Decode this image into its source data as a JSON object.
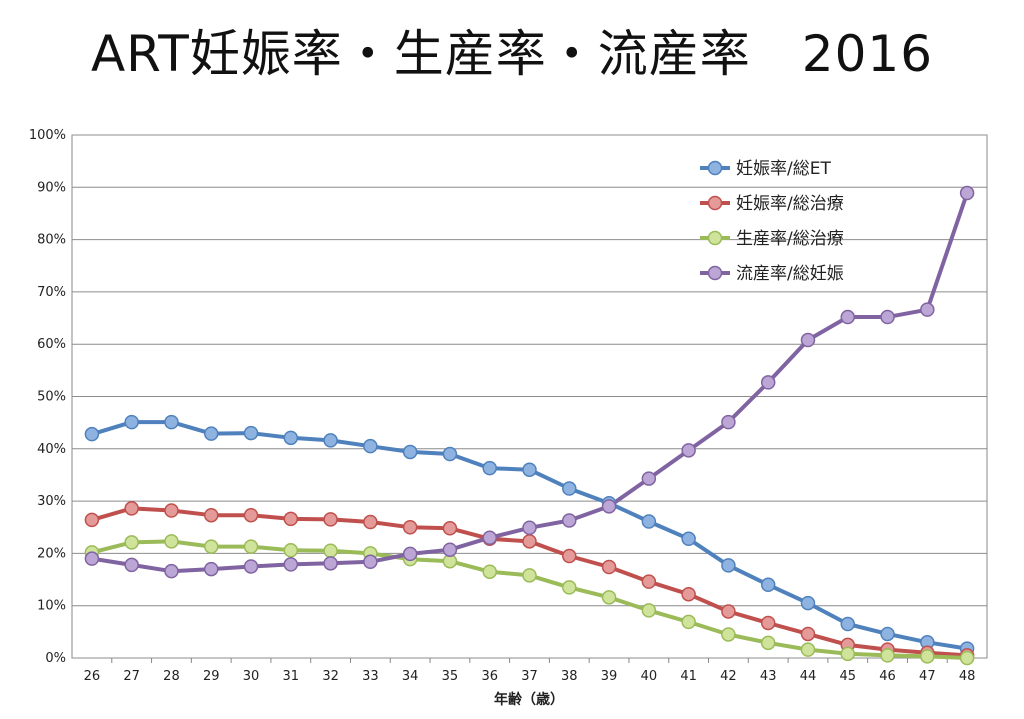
{
  "title": "ART妊娠率・生産率・流産率　2016",
  "chart_data": {
    "type": "line",
    "title": "ART妊娠率・生産率・流産率　2016",
    "xlabel": "年齢（歳）",
    "ylabel": "",
    "ylim": [
      0,
      100
    ],
    "y_ticks": [
      "0%",
      "10%",
      "20%",
      "30%",
      "40%",
      "50%",
      "60%",
      "70%",
      "80%",
      "90%",
      "100%"
    ],
    "categories": [
      "26",
      "27",
      "28",
      "29",
      "30",
      "31",
      "32",
      "33",
      "34",
      "35",
      "36",
      "37",
      "38",
      "39",
      "40",
      "41",
      "42",
      "43",
      "44",
      "45",
      "46",
      "47",
      "48"
    ],
    "grid": true,
    "legend_position": "top-right",
    "series": [
      {
        "name": "妊娠率/総ET",
        "color": "#4f81bd",
        "marker_color": "#8fb3e0",
        "values": [
          42.8,
          45.1,
          45.1,
          42.9,
          43.0,
          42.1,
          41.6,
          40.5,
          39.4,
          39.0,
          36.3,
          36.0,
          32.4,
          29.6,
          26.1,
          22.8,
          17.7,
          14.0,
          10.5,
          6.5,
          4.6,
          3.0,
          1.8
        ]
      },
      {
        "name": "妊娠率/総治療",
        "color": "#c0504d",
        "marker_color": "#e39a98",
        "values": [
          26.4,
          28.6,
          28.2,
          27.3,
          27.3,
          26.6,
          26.5,
          26.0,
          25.0,
          24.8,
          22.8,
          22.3,
          19.5,
          17.4,
          14.6,
          12.2,
          8.9,
          6.7,
          4.6,
          2.5,
          1.6,
          1.0,
          0.5
        ]
      },
      {
        "name": "生産率/総治療",
        "color": "#9bbb59",
        "marker_color": "#cfe49a",
        "values": [
          20.2,
          22.1,
          22.3,
          21.3,
          21.3,
          20.6,
          20.5,
          20.0,
          18.9,
          18.5,
          16.5,
          15.8,
          13.5,
          11.6,
          9.1,
          6.9,
          4.5,
          2.9,
          1.6,
          0.8,
          0.5,
          0.3,
          0.0
        ]
      },
      {
        "name": "流産率/総妊娠",
        "color": "#8064a2",
        "marker_color": "#bba6d6",
        "values": [
          19.0,
          17.8,
          16.6,
          17.0,
          17.5,
          17.9,
          18.1,
          18.4,
          19.9,
          20.7,
          23.0,
          24.9,
          26.3,
          29.0,
          34.3,
          39.7,
          45.1,
          52.7,
          60.8,
          65.2,
          65.2,
          66.6,
          88.9
        ]
      }
    ]
  }
}
